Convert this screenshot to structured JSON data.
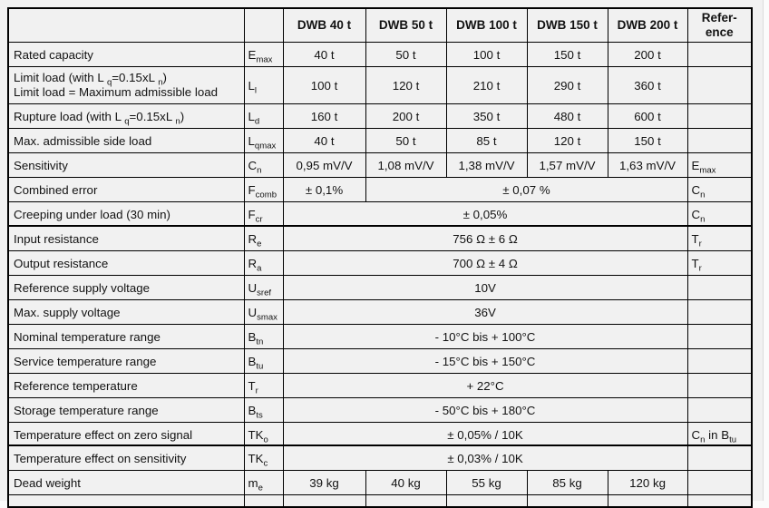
{
  "colors": {
    "paper": "#f1f1f1",
    "table_border": "#000000",
    "text": "#121212",
    "outside_page": "#fbfbfb"
  },
  "table": {
    "header": [
      "",
      "",
      "DWB 40 t",
      "DWB 50 t",
      "DWB 100 t",
      "DWB 150 t",
      "DWB 200 t",
      "Refer-\nence"
    ],
    "rows": [
      {
        "slice": "a",
        "label": [
          [
            {
              "t": "Rated capacity"
            }
          ]
        ],
        "sym": [
          {
            "t": "E"
          },
          {
            "t": "max",
            "sub": true
          }
        ],
        "cells": [
          {
            "t": "40 t"
          },
          {
            "t": "50 t"
          },
          {
            "t": "100 t"
          },
          {
            "t": "150 t"
          },
          {
            "t": "200 t"
          }
        ],
        "ref": []
      },
      {
        "slice": "a",
        "tall": true,
        "label": [
          [
            {
              "t": "Limit load (with L "
            },
            {
              "t": "q",
              "sub": true
            },
            {
              "t": "=0.15xL "
            },
            {
              "t": "n",
              "sub": true
            },
            {
              "t": ")"
            }
          ],
          [
            {
              "t": "Limit load = Maximum admissible load"
            }
          ]
        ],
        "sym": [
          {
            "t": "L"
          },
          {
            "t": "l",
            "sub": true
          }
        ],
        "cells": [
          {
            "t": "100 t"
          },
          {
            "t": "120 t"
          },
          {
            "t": "210 t"
          },
          {
            "t": "290 t"
          },
          {
            "t": "360 t"
          }
        ],
        "ref": []
      },
      {
        "slice": "a",
        "label": [
          [
            {
              "t": "Rupture load (with L "
            },
            {
              "t": "q",
              "sub": true
            },
            {
              "t": "=0.15xL "
            },
            {
              "t": "n",
              "sub": true
            },
            {
              "t": ")"
            }
          ]
        ],
        "sym": [
          {
            "t": "L"
          },
          {
            "t": "d",
            "sub": true
          }
        ],
        "cells": [
          {
            "t": "160 t"
          },
          {
            "t": "200 t"
          },
          {
            "t": "350 t"
          },
          {
            "t": "480 t"
          },
          {
            "t": "600 t"
          }
        ],
        "ref": []
      },
      {
        "slice": "a",
        "label": [
          [
            {
              "t": "Max. admissible side load"
            }
          ]
        ],
        "sym": [
          {
            "t": "L"
          },
          {
            "t": "qmax",
            "sub": true
          }
        ],
        "cells": [
          {
            "t": "40 t"
          },
          {
            "t": "50 t"
          },
          {
            "t": "85 t"
          },
          {
            "t": "120 t"
          },
          {
            "t": "150 t"
          }
        ],
        "ref": []
      },
      {
        "slice": "a",
        "label": [
          [
            {
              "t": "Sensitivity"
            }
          ]
        ],
        "sym": [
          {
            "t": "C"
          },
          {
            "t": "n",
            "sub": true
          }
        ],
        "cells": [
          {
            "t": "0,95 mV/V"
          },
          {
            "t": "1,08 mV/V"
          },
          {
            "t": "1,38 mV/V"
          },
          {
            "t": "1,57 mV/V"
          },
          {
            "t": "1,63 mV/V"
          }
        ],
        "ref": [
          {
            "t": "E"
          },
          {
            "t": "max",
            "sub": true
          }
        ]
      },
      {
        "slice": "a",
        "label": [
          [
            {
              "t": "Combined error"
            }
          ]
        ],
        "sym": [
          {
            "t": "F"
          },
          {
            "t": "comb",
            "sub": true
          }
        ],
        "cells": [
          {
            "t": "± 0,1%"
          },
          {
            "t": "± 0,07 %",
            "span": 4
          }
        ],
        "ref": [
          {
            "t": "C"
          },
          {
            "t": "n",
            "sub": true
          }
        ]
      },
      {
        "slice": "a",
        "label": [
          [
            {
              "t": "Creeping under load (30 min)"
            }
          ]
        ],
        "sym": [
          {
            "t": "F"
          },
          {
            "t": "cr",
            "sub": true
          }
        ],
        "cells": [
          {
            "t": "± 0,05%",
            "span": 5
          }
        ],
        "ref": [
          {
            "t": "C"
          },
          {
            "t": "n",
            "sub": true
          }
        ]
      },
      {
        "slice": "b",
        "label": [
          [
            {
              "t": "Input resistance"
            }
          ]
        ],
        "sym": [
          {
            "t": "R"
          },
          {
            "t": "e",
            "sub": true
          }
        ],
        "cells": [
          {
            "t": "756 Ω ± 6 Ω",
            "span": 5
          }
        ],
        "ref": [
          {
            "t": "T"
          },
          {
            "t": "r",
            "sub": true
          }
        ]
      },
      {
        "slice": "b",
        "label": [
          [
            {
              "t": "Output resistance"
            }
          ]
        ],
        "sym": [
          {
            "t": "R"
          },
          {
            "t": "a",
            "sub": true
          }
        ],
        "cells": [
          {
            "t": "700 Ω ± 4 Ω",
            "span": 5
          }
        ],
        "ref": [
          {
            "t": "T"
          },
          {
            "t": "r",
            "sub": true
          }
        ]
      },
      {
        "slice": "b",
        "label": [
          [
            {
              "t": "Reference supply voltage"
            }
          ]
        ],
        "sym": [
          {
            "t": "U"
          },
          {
            "t": "sref",
            "sub": true
          }
        ],
        "cells": [
          {
            "t": "10V",
            "span": 5
          }
        ],
        "ref": []
      },
      {
        "slice": "b",
        "label": [
          [
            {
              "t": "Max. supply voltage"
            }
          ]
        ],
        "sym": [
          {
            "t": "U"
          },
          {
            "t": "smax",
            "sub": true
          }
        ],
        "cells": [
          {
            "t": "36V",
            "span": 5
          }
        ],
        "ref": []
      },
      {
        "slice": "b",
        "label": [
          [
            {
              "t": "Nominal temperature range"
            }
          ]
        ],
        "sym": [
          {
            "t": "B"
          },
          {
            "t": "tn",
            "sub": true
          }
        ],
        "cells": [
          {
            "t": "- 10°C bis + 100°C",
            "span": 5
          }
        ],
        "ref": []
      },
      {
        "slice": "b",
        "label": [
          [
            {
              "t": "Service temperature range"
            }
          ]
        ],
        "sym": [
          {
            "t": "B"
          },
          {
            "t": "tu",
            "sub": true
          }
        ],
        "cells": [
          {
            "t": "- 15°C bis + 150°C",
            "span": 5
          }
        ],
        "ref": []
      },
      {
        "slice": "b",
        "label": [
          [
            {
              "t": "Reference temperature"
            }
          ]
        ],
        "sym": [
          {
            "t": "T"
          },
          {
            "t": "r",
            "sub": true
          }
        ],
        "cells": [
          {
            "t": "+ 22°C",
            "span": 5
          }
        ],
        "ref": []
      },
      {
        "slice": "b",
        "label": [
          [
            {
              "t": "Storage temperature range"
            }
          ]
        ],
        "sym": [
          {
            "t": "B"
          },
          {
            "t": "ts",
            "sub": true
          }
        ],
        "cells": [
          {
            "t": "- 50°C bis + 180°C",
            "span": 5
          }
        ],
        "ref": []
      },
      {
        "slice": "b",
        "label": [
          [
            {
              "t": "Temperature effect on zero signal"
            }
          ]
        ],
        "sym": [
          {
            "t": "TK"
          },
          {
            "t": "o",
            "sub": true
          }
        ],
        "cells": [
          {
            "t": "± 0,05% / 10K",
            "span": 5
          }
        ],
        "ref": [
          {
            "t": "C"
          },
          {
            "t": "n",
            "sub": true
          },
          {
            "t": " in B"
          },
          {
            "t": "tu",
            "sub": true
          }
        ]
      },
      {
        "slice": "c",
        "label": [
          [
            {
              "t": "Temperature effect on sensitivity"
            }
          ]
        ],
        "sym": [
          {
            "t": "TK"
          },
          {
            "t": "c",
            "sub": true
          }
        ],
        "cells": [
          {
            "t": "± 0,03% / 10K",
            "span": 5
          }
        ],
        "ref": []
      },
      {
        "slice": "c",
        "label": [
          [
            {
              "t": "Dead weight"
            }
          ]
        ],
        "sym": [
          {
            "t": "m"
          },
          {
            "t": "e",
            "sub": true
          }
        ],
        "cells": [
          {
            "t": "39 kg"
          },
          {
            "t": "40 kg"
          },
          {
            "t": "55 kg"
          },
          {
            "t": "85 kg"
          },
          {
            "t": "120 kg"
          }
        ],
        "ref": []
      }
    ]
  }
}
